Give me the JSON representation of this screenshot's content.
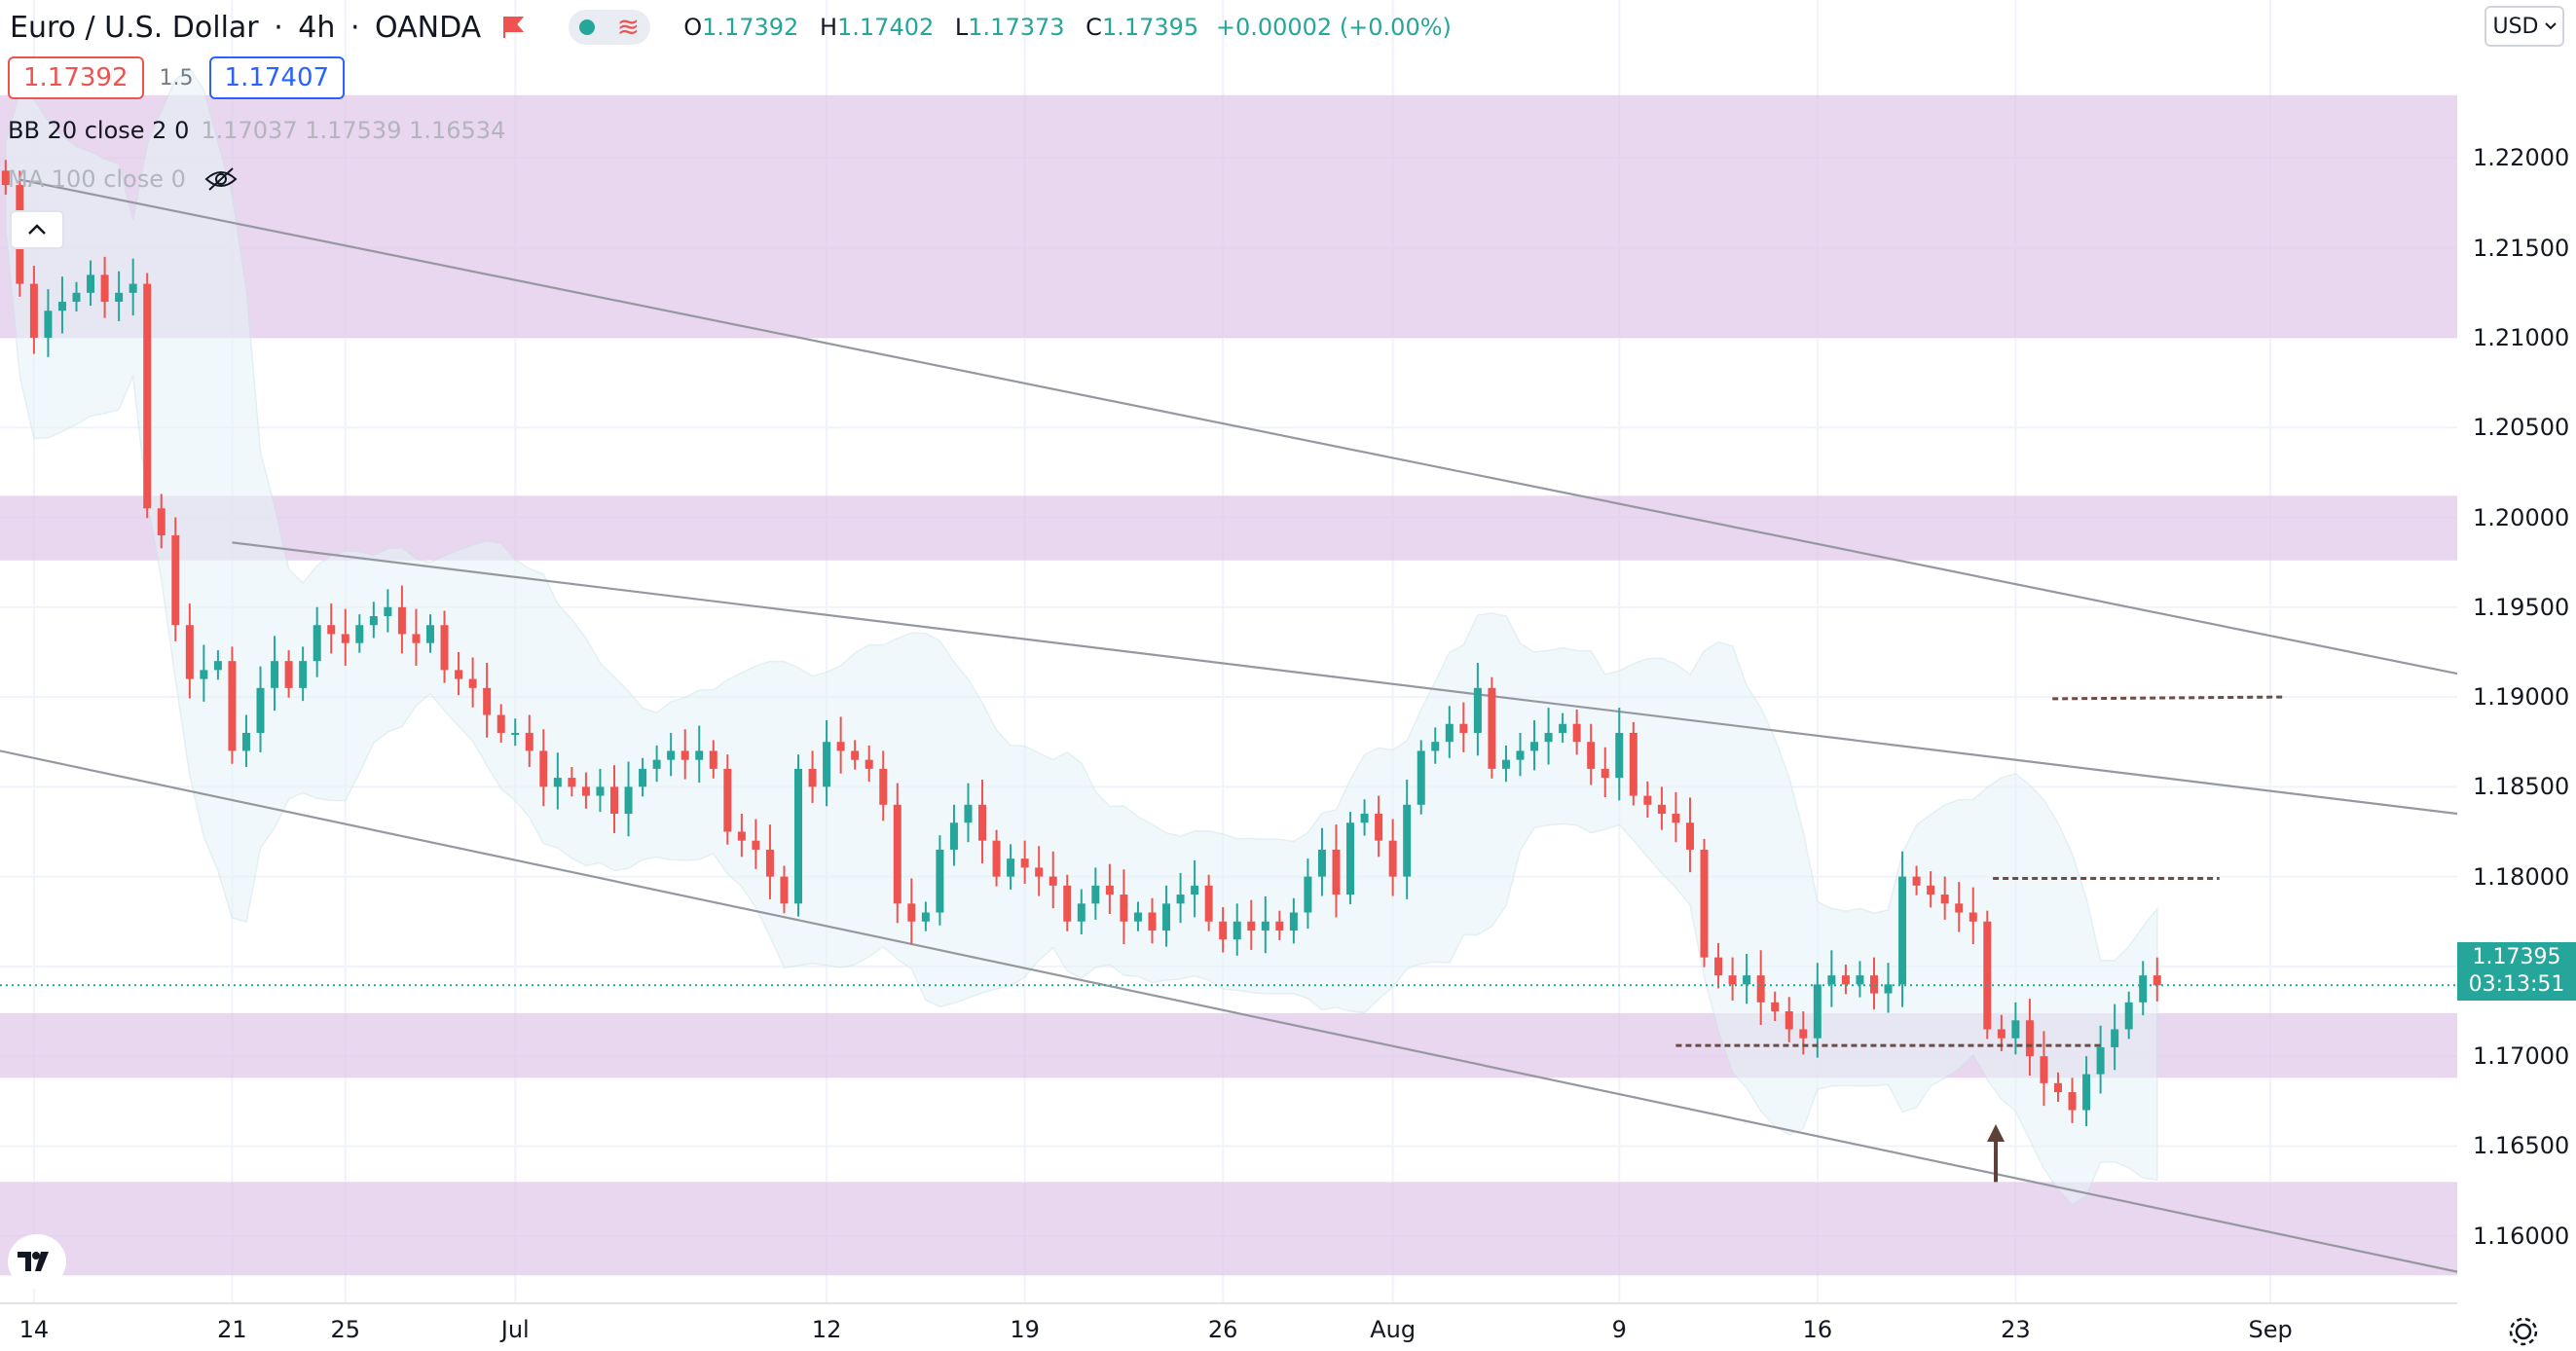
{
  "header": {
    "symbol": "Euro / U.S. Dollar",
    "interval": "4h",
    "broker": "OANDA",
    "ohlc": {
      "o_label": "O",
      "o": "1.17392",
      "h_label": "H",
      "h": "1.17402",
      "l_label": "L",
      "l": "1.17373",
      "c_label": "C",
      "c": "1.17395",
      "change": "+0.00002 (+0.00%)"
    },
    "sell_price": "1.17392",
    "spread": "1.5",
    "buy_price": "1.17407"
  },
  "indicators": {
    "bb_label": "BB 20 close 2 0",
    "bb_values": "1.17037  1.17539  1.16534",
    "ma_label": "MA 100 close 0"
  },
  "currency_button": "USD",
  "last_price": {
    "price": "1.17395",
    "countdown": "03:13:51"
  },
  "colors": {
    "up": "#26a69a",
    "down": "#ef5350",
    "zone": "#e1c8ea",
    "trendline": "#9598a1",
    "level_dashed": "#6d4c41",
    "band": "#e6f4f8"
  },
  "icons": [
    "flag-icon",
    "wave-icon",
    "eye-slash-icon",
    "chevron-up-icon",
    "chevron-down-icon",
    "tradingview-logo-icon",
    "gear-icon",
    "arrow-up-icon"
  ],
  "chart_data": {
    "type": "candlestick",
    "y_axis_ticks": [
      "1.22000",
      "1.21500",
      "1.21000",
      "1.20500",
      "1.20000",
      "1.19500",
      "1.19000",
      "1.18500",
      "1.18000",
      "1.17500",
      "1.17000",
      "1.16500",
      "1.16000"
    ],
    "y_range": [
      1.1563,
      1.2288
    ],
    "x_axis_ticks": [
      {
        "label": "14",
        "pos": 0
      },
      {
        "label": "21",
        "pos": 7
      },
      {
        "label": "25",
        "pos": 11
      },
      {
        "label": "Jul",
        "pos": 17
      },
      {
        "label": "12",
        "pos": 28
      },
      {
        "label": "19",
        "pos": 35
      },
      {
        "label": "26",
        "pos": 42
      },
      {
        "label": "Aug",
        "pos": 48
      },
      {
        "label": "9",
        "pos": 56
      },
      {
        "label": "16",
        "pos": 63
      },
      {
        "label": "23",
        "pos": 70
      },
      {
        "label": "Sep",
        "pos": 79
      }
    ],
    "x_range": [
      -1.2,
      85.6
    ],
    "support_resistance_zones": [
      [
        1.21,
        1.2235
      ],
      [
        1.1976,
        1.2012
      ],
      [
        1.1688,
        1.1724
      ],
      [
        1.1578,
        1.163
      ]
    ],
    "trendlines": [
      {
        "from": [
          -0.5,
          1.2188
        ],
        "to": [
          85.6,
          1.1913
        ]
      },
      {
        "from": [
          7.0,
          1.1986
        ],
        "to": [
          85.6,
          1.1835
        ]
      },
      {
        "from": [
          -1.2,
          1.187
        ],
        "to": [
          85.6,
          1.158
        ]
      }
    ],
    "dashed_levels": [
      {
        "from": [
          71.3,
          1.1899
        ],
        "to": [
          79.5,
          1.19
        ]
      },
      {
        "from": [
          69.2,
          1.1799
        ],
        "to": [
          77.2,
          1.1799
        ]
      },
      {
        "from": [
          58.0,
          1.1706
        ],
        "to": [
          73.0,
          1.1706
        ]
      }
    ],
    "last_price_line": 1.17395,
    "arrow_marker": {
      "x": 69.3,
      "y_from": 1.163,
      "y_to": 1.166
    },
    "close_series": [
      {
        "t": -1.0,
        "c": 1.2185
      },
      {
        "t": -0.5,
        "c": 1.213
      },
      {
        "t": 0.0,
        "c": 1.21
      },
      {
        "t": 0.5,
        "c": 1.2115
      },
      {
        "t": 1.0,
        "c": 1.212
      },
      {
        "t": 1.5,
        "c": 1.2125
      },
      {
        "t": 2.0,
        "c": 1.2135
      },
      {
        "t": 2.5,
        "c": 1.212
      },
      {
        "t": 3.0,
        "c": 1.2125
      },
      {
        "t": 3.5,
        "c": 1.213
      },
      {
        "t": 4.0,
        "c": 1.2005
      },
      {
        "t": 4.5,
        "c": 1.199
      },
      {
        "t": 5.0,
        "c": 1.194
      },
      {
        "t": 5.5,
        "c": 1.191
      },
      {
        "t": 6.0,
        "c": 1.1915
      },
      {
        "t": 6.5,
        "c": 1.192
      },
      {
        "t": 7.0,
        "c": 1.187
      },
      {
        "t": 7.5,
        "c": 1.188
      },
      {
        "t": 8.0,
        "c": 1.1905
      },
      {
        "t": 8.5,
        "c": 1.192
      },
      {
        "t": 9.0,
        "c": 1.1905
      },
      {
        "t": 9.5,
        "c": 1.192
      },
      {
        "t": 10.0,
        "c": 1.194
      },
      {
        "t": 10.5,
        "c": 1.1935
      },
      {
        "t": 11.0,
        "c": 1.193
      },
      {
        "t": 11.5,
        "c": 1.194
      },
      {
        "t": 12.0,
        "c": 1.1945
      },
      {
        "t": 12.5,
        "c": 1.195
      },
      {
        "t": 13.0,
        "c": 1.1935
      },
      {
        "t": 13.5,
        "c": 1.193
      },
      {
        "t": 14.0,
        "c": 1.194
      },
      {
        "t": 14.5,
        "c": 1.1915
      },
      {
        "t": 15.0,
        "c": 1.191
      },
      {
        "t": 15.5,
        "c": 1.1905
      },
      {
        "t": 16.0,
        "c": 1.189
      },
      {
        "t": 16.5,
        "c": 1.188
      },
      {
        "t": 17.0,
        "c": 1.188
      },
      {
        "t": 17.5,
        "c": 1.187
      },
      {
        "t": 18.0,
        "c": 1.185
      },
      {
        "t": 18.5,
        "c": 1.1855
      },
      {
        "t": 19.0,
        "c": 1.185
      },
      {
        "t": 19.5,
        "c": 1.1845
      },
      {
        "t": 20.0,
        "c": 1.185
      },
      {
        "t": 20.5,
        "c": 1.1835
      },
      {
        "t": 21.0,
        "c": 1.185
      },
      {
        "t": 21.5,
        "c": 1.186
      },
      {
        "t": 22.0,
        "c": 1.1865
      },
      {
        "t": 22.5,
        "c": 1.187
      },
      {
        "t": 23.0,
        "c": 1.1865
      },
      {
        "t": 23.5,
        "c": 1.187
      },
      {
        "t": 24.0,
        "c": 1.186
      },
      {
        "t": 24.5,
        "c": 1.1825
      },
      {
        "t": 25.0,
        "c": 1.182
      },
      {
        "t": 25.5,
        "c": 1.1815
      },
      {
        "t": 26.0,
        "c": 1.18
      },
      {
        "t": 26.5,
        "c": 1.1785
      },
      {
        "t": 27.0,
        "c": 1.186
      },
      {
        "t": 27.5,
        "c": 1.185
      },
      {
        "t": 28.0,
        "c": 1.1875
      },
      {
        "t": 28.5,
        "c": 1.187
      },
      {
        "t": 29.0,
        "c": 1.1865
      },
      {
        "t": 29.5,
        "c": 1.186
      },
      {
        "t": 30.0,
        "c": 1.184
      },
      {
        "t": 30.5,
        "c": 1.1785
      },
      {
        "t": 31.0,
        "c": 1.1775
      },
      {
        "t": 31.5,
        "c": 1.178
      },
      {
        "t": 32.0,
        "c": 1.1815
      },
      {
        "t": 32.5,
        "c": 1.183
      },
      {
        "t": 33.0,
        "c": 1.184
      },
      {
        "t": 33.5,
        "c": 1.182
      },
      {
        "t": 34.0,
        "c": 1.18
      },
      {
        "t": 34.5,
        "c": 1.181
      },
      {
        "t": 35.0,
        "c": 1.1805
      },
      {
        "t": 35.5,
        "c": 1.18
      },
      {
        "t": 36.0,
        "c": 1.1795
      },
      {
        "t": 36.5,
        "c": 1.1775
      },
      {
        "t": 37.0,
        "c": 1.1785
      },
      {
        "t": 37.5,
        "c": 1.1795
      },
      {
        "t": 38.0,
        "c": 1.179
      },
      {
        "t": 38.5,
        "c": 1.1775
      },
      {
        "t": 39.0,
        "c": 1.178
      },
      {
        "t": 39.5,
        "c": 1.177
      },
      {
        "t": 40.0,
        "c": 1.1785
      },
      {
        "t": 40.5,
        "c": 1.179
      },
      {
        "t": 41.0,
        "c": 1.1795
      },
      {
        "t": 41.5,
        "c": 1.1775
      },
      {
        "t": 42.0,
        "c": 1.1765
      },
      {
        "t": 42.5,
        "c": 1.1775
      },
      {
        "t": 43.0,
        "c": 1.177
      },
      {
        "t": 43.5,
        "c": 1.1775
      },
      {
        "t": 44.0,
        "c": 1.177
      },
      {
        "t": 44.5,
        "c": 1.178
      },
      {
        "t": 45.0,
        "c": 1.18
      },
      {
        "t": 45.5,
        "c": 1.1815
      },
      {
        "t": 46.0,
        "c": 1.179
      },
      {
        "t": 46.5,
        "c": 1.183
      },
      {
        "t": 47.0,
        "c": 1.1835
      },
      {
        "t": 47.5,
        "c": 1.182
      },
      {
        "t": 48.0,
        "c": 1.18
      },
      {
        "t": 48.5,
        "c": 1.184
      },
      {
        "t": 49.0,
        "c": 1.187
      },
      {
        "t": 49.5,
        "c": 1.1875
      },
      {
        "t": 50.0,
        "c": 1.1885
      },
      {
        "t": 50.5,
        "c": 1.188
      },
      {
        "t": 51.0,
        "c": 1.1905
      },
      {
        "t": 51.5,
        "c": 1.186
      },
      {
        "t": 52.0,
        "c": 1.1865
      },
      {
        "t": 52.5,
        "c": 1.187
      },
      {
        "t": 53.0,
        "c": 1.1875
      },
      {
        "t": 53.5,
        "c": 1.188
      },
      {
        "t": 54.0,
        "c": 1.1885
      },
      {
        "t": 54.5,
        "c": 1.1875
      },
      {
        "t": 55.0,
        "c": 1.186
      },
      {
        "t": 55.5,
        "c": 1.1855
      },
      {
        "t": 56.0,
        "c": 1.188
      },
      {
        "t": 56.5,
        "c": 1.1845
      },
      {
        "t": 57.0,
        "c": 1.184
      },
      {
        "t": 57.5,
        "c": 1.1835
      },
      {
        "t": 58.0,
        "c": 1.183
      },
      {
        "t": 58.5,
        "c": 1.1815
      },
      {
        "t": 59.0,
        "c": 1.1755
      },
      {
        "t": 59.5,
        "c": 1.1745
      },
      {
        "t": 60.0,
        "c": 1.174
      },
      {
        "t": 60.5,
        "c": 1.1745
      },
      {
        "t": 61.0,
        "c": 1.173
      },
      {
        "t": 61.5,
        "c": 1.1725
      },
      {
        "t": 62.0,
        "c": 1.1715
      },
      {
        "t": 62.5,
        "c": 1.171
      },
      {
        "t": 63.0,
        "c": 1.174
      },
      {
        "t": 63.5,
        "c": 1.1745
      },
      {
        "t": 64.0,
        "c": 1.174
      },
      {
        "t": 64.5,
        "c": 1.1745
      },
      {
        "t": 65.0,
        "c": 1.1735
      },
      {
        "t": 65.5,
        "c": 1.174
      },
      {
        "t": 66.0,
        "c": 1.18
      },
      {
        "t": 66.5,
        "c": 1.1795
      },
      {
        "t": 67.0,
        "c": 1.179
      },
      {
        "t": 67.5,
        "c": 1.1785
      },
      {
        "t": 68.0,
        "c": 1.178
      },
      {
        "t": 68.5,
        "c": 1.1775
      },
      {
        "t": 69.0,
        "c": 1.1715
      },
      {
        "t": 69.5,
        "c": 1.171
      },
      {
        "t": 70.0,
        "c": 1.172
      },
      {
        "t": 70.5,
        "c": 1.17
      },
      {
        "t": 71.0,
        "c": 1.1685
      },
      {
        "t": 71.5,
        "c": 1.168
      },
      {
        "t": 72.0,
        "c": 1.167
      },
      {
        "t": 72.5,
        "c": 1.169
      },
      {
        "t": 73.0,
        "c": 1.1705
      },
      {
        "t": 73.5,
        "c": 1.1715
      },
      {
        "t": 74.0,
        "c": 1.173
      },
      {
        "t": 74.5,
        "c": 1.1745
      },
      {
        "t": 75.0,
        "c": 1.17395
      }
    ]
  }
}
